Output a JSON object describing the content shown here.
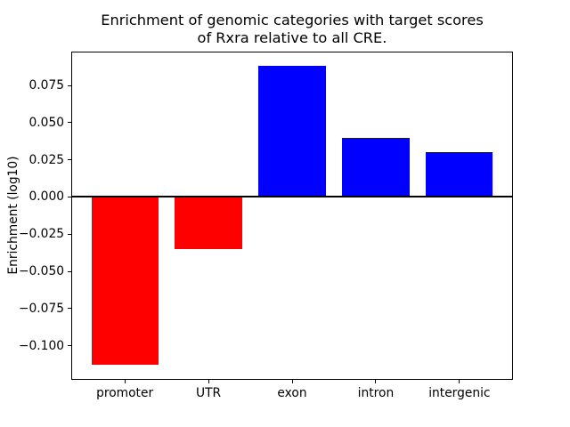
{
  "chart_data": {
    "type": "bar",
    "title": "Enrichment of genomic categories with target scores of Rxra relative to all CRE.",
    "title_lines": [
      "Enrichment of genomic categories with target scores",
      "of Rxra relative to all CRE."
    ],
    "ylabel": "Enrichment (log10)",
    "xlabel": "",
    "categories": [
      "promoter",
      "UTR",
      "exon",
      "intron",
      "intergenic"
    ],
    "values": [
      -0.113,
      -0.035,
      0.088,
      0.04,
      0.03
    ],
    "bar_colors": [
      "#ff0000",
      "#ff0000",
      "#0000ff",
      "#0000ff",
      "#0000ff"
    ],
    "positive_color": "#0000ff",
    "negative_color": "#ff0000",
    "axis_color": "#000000",
    "background_color": "#ffffff",
    "yticks": [
      0.075,
      0.05,
      0.025,
      0.0,
      -0.025,
      -0.05,
      -0.075,
      -0.1
    ],
    "ytick_labels": [
      "0.075",
      "0.050",
      "0.025",
      "0.000",
      "−0.025",
      "−0.050",
      "−0.075",
      "−0.100"
    ],
    "ylim": [
      -0.123,
      0.098
    ],
    "xlim": [
      -0.64,
      4.64
    ],
    "bar_width": 0.8,
    "grid": false,
    "legend": "none",
    "zero_line": true
  }
}
